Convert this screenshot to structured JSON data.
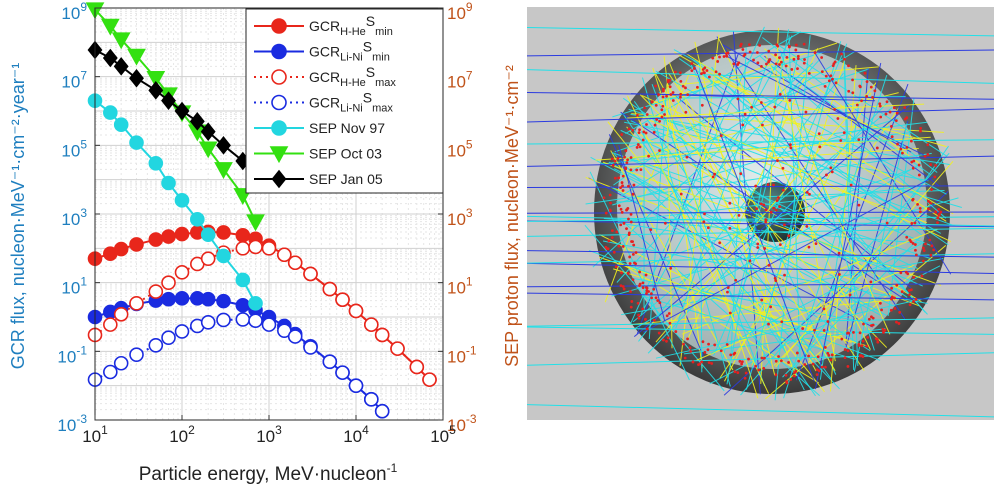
{
  "chart_data": {
    "type": "line",
    "x_scale": "log",
    "y_scale": "log",
    "xlim": [
      10,
      100000
    ],
    "ylim": [
      0.001,
      1000000000
    ],
    "grid": true,
    "legend_position": "top-right",
    "xlabel": "Particle energy, MeV·nucleon",
    "xlabel_sup": "-1",
    "ylabel_left": "GCR flux, nucleon·MeV⁻¹·cm⁻²·year⁻¹",
    "ylabel_right": "SEP proton flux, nucleon·MeV⁻¹·cm⁻²",
    "x_ticks": [
      {
        "value": 10,
        "base": "10",
        "exp": "1"
      },
      {
        "value": 100,
        "base": "10",
        "exp": "2"
      },
      {
        "value": 1000,
        "base": "10",
        "exp": "3"
      },
      {
        "value": 10000,
        "base": "10",
        "exp": "4"
      },
      {
        "value": 100000,
        "base": "10",
        "exp": "5"
      }
    ],
    "y_ticks": [
      {
        "value": 0.001,
        "base": "10",
        "exp": "-3"
      },
      {
        "value": 0.1,
        "base": "10",
        "exp": "-1"
      },
      {
        "value": 10,
        "base": "10",
        "exp": "1"
      },
      {
        "value": 1000,
        "base": "10",
        "exp": "3"
      },
      {
        "value": 100000,
        "base": "10",
        "exp": "5"
      },
      {
        "value": 10000000,
        "base": "10",
        "exp": "7"
      },
      {
        "value": 1000000000,
        "base": "10",
        "exp": "9"
      }
    ],
    "series": [
      {
        "name": "GCR",
        "sub": "H-He",
        "mid": "S",
        "sub2": "min",
        "color": "#e8261b",
        "marker": "circle",
        "filled": true,
        "line": "solid",
        "x": [
          10,
          15,
          20,
          30,
          50,
          70,
          100,
          150,
          200,
          300,
          500,
          700,
          1000,
          1500,
          2000,
          3000,
          5000,
          7000,
          10000,
          15000,
          20000,
          30000,
          50000,
          70000
        ],
        "y": [
          50,
          70,
          95,
          130,
          180,
          220,
          260,
          290,
          300,
          290,
          240,
          190,
          120,
          65,
          38,
          18,
          6.5,
          3.2,
          1.5,
          0.6,
          0.3,
          0.12,
          0.035,
          0.015
        ]
      },
      {
        "name": "GCR",
        "sub": "Li-Ni",
        "mid": "S",
        "sub2": "min",
        "color": "#1a2be0",
        "marker": "circle",
        "filled": true,
        "line": "solid",
        "x": [
          10,
          15,
          20,
          30,
          50,
          70,
          100,
          150,
          200,
          300,
          500,
          700,
          1000,
          1500,
          2000,
          3000,
          5000,
          7000,
          10000,
          15000,
          20000
        ],
        "y": [
          1.0,
          1.4,
          1.8,
          2.4,
          3.0,
          3.3,
          3.5,
          3.5,
          3.3,
          2.9,
          2.2,
          1.6,
          1.0,
          0.55,
          0.32,
          0.14,
          0.05,
          0.024,
          0.01,
          0.004,
          0.0018
        ]
      },
      {
        "name": "GCR",
        "sub": "H-He",
        "mid": "S",
        "sub2": "max",
        "color": "#e8261b",
        "marker": "circle",
        "filled": false,
        "line": "dotted",
        "x": [
          10,
          15,
          20,
          30,
          50,
          70,
          100,
          150,
          200,
          300,
          500,
          700,
          1000,
          1500,
          2000,
          3000,
          5000,
          7000,
          10000,
          15000,
          20000,
          30000,
          50000,
          70000
        ],
        "y": [
          0.3,
          0.6,
          1.2,
          2.5,
          5.5,
          10,
          20,
          35,
          50,
          75,
          100,
          110,
          100,
          65,
          38,
          18,
          6.5,
          3.2,
          1.5,
          0.6,
          0.3,
          0.12,
          0.035,
          0.015
        ]
      },
      {
        "name": "GCR",
        "sub": "Li-Ni",
        "mid": "S",
        "sub2": "max",
        "color": "#1a2be0",
        "marker": "circle",
        "filled": false,
        "line": "dotted",
        "x": [
          10,
          15,
          20,
          30,
          50,
          70,
          100,
          150,
          200,
          300,
          500,
          700,
          1000,
          1500,
          2000,
          3000,
          5000,
          7000,
          10000,
          15000,
          20000
        ],
        "y": [
          0.015,
          0.025,
          0.045,
          0.08,
          0.15,
          0.25,
          0.38,
          0.55,
          0.7,
          0.82,
          0.85,
          0.78,
          0.6,
          0.4,
          0.27,
          0.13,
          0.05,
          0.024,
          0.01,
          0.004,
          0.0018
        ]
      },
      {
        "name": "SEP Nov 97",
        "color": "#22d6e0",
        "marker": "circle",
        "filled": true,
        "line": "solid",
        "x": [
          10,
          15,
          20,
          30,
          50,
          70,
          100,
          150,
          200,
          300,
          500,
          700
        ],
        "y": [
          2000000,
          900000,
          400000,
          120000,
          30000,
          8000,
          2500,
          700,
          250,
          60,
          12,
          2.5
        ]
      },
      {
        "name": "SEP Oct 03",
        "color": "#33e011",
        "marker": "triangle-down",
        "filled": true,
        "line": "solid",
        "x": [
          10,
          15,
          20,
          30,
          50,
          70,
          100,
          150,
          200,
          300,
          500,
          700
        ],
        "y": [
          900000000,
          300000000,
          120000000,
          40000000,
          9000000,
          3000000,
          900000,
          250000,
          80000,
          20000,
          3500,
          600
        ]
      },
      {
        "name": "SEP Jan 05",
        "color": "#000000",
        "marker": "diamond",
        "filled": true,
        "line": "solid",
        "x": [
          10,
          15,
          20,
          30,
          50,
          70,
          100,
          150,
          200,
          300,
          500,
          700
        ],
        "y": [
          60000000,
          35000000,
          20000000,
          9000000,
          4000000,
          2000000,
          1000000,
          500000,
          250000,
          100000,
          35000,
          12000
        ]
      }
    ]
  },
  "simulation": {
    "colors": {
      "background": "#c7c7c7",
      "shell": "#4a4a4a",
      "inner": "#2f5050",
      "track_cyan": "#22e0e8",
      "track_yellow": "#f2f21e",
      "track_blue": "#2b3be0",
      "hit": "#e62020"
    }
  }
}
